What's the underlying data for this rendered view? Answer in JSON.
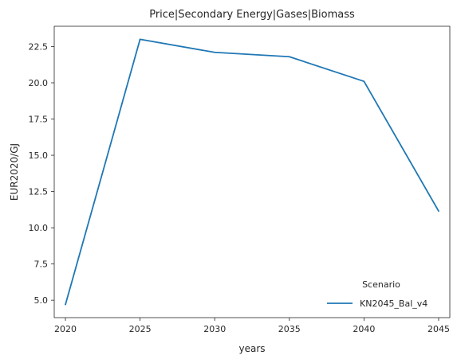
{
  "chart_data": {
    "type": "line",
    "title": "Price|Secondary Energy|Gases|Biomass",
    "xlabel": "years",
    "ylabel": "EUR2020/GJ",
    "x": [
      2020,
      2025,
      2030,
      2035,
      2040,
      2045
    ],
    "xticks": [
      "2020",
      "2025",
      "2030",
      "2035",
      "2040",
      "2045"
    ],
    "yticks": [
      "5.0",
      "7.5",
      "10.0",
      "12.5",
      "15.0",
      "17.5",
      "20.0",
      "22.5"
    ],
    "xlim": [
      2019.25,
      2045.75
    ],
    "ylim": [
      3.8,
      23.9
    ],
    "grid": false,
    "legend": {
      "title": "Scenario",
      "position": "lower-right"
    },
    "series": [
      {
        "name": "KN2045_Bal_v4",
        "color": "#1f77b4",
        "values": [
          4.7,
          23.0,
          22.1,
          21.8,
          20.1,
          11.15
        ]
      }
    ]
  }
}
